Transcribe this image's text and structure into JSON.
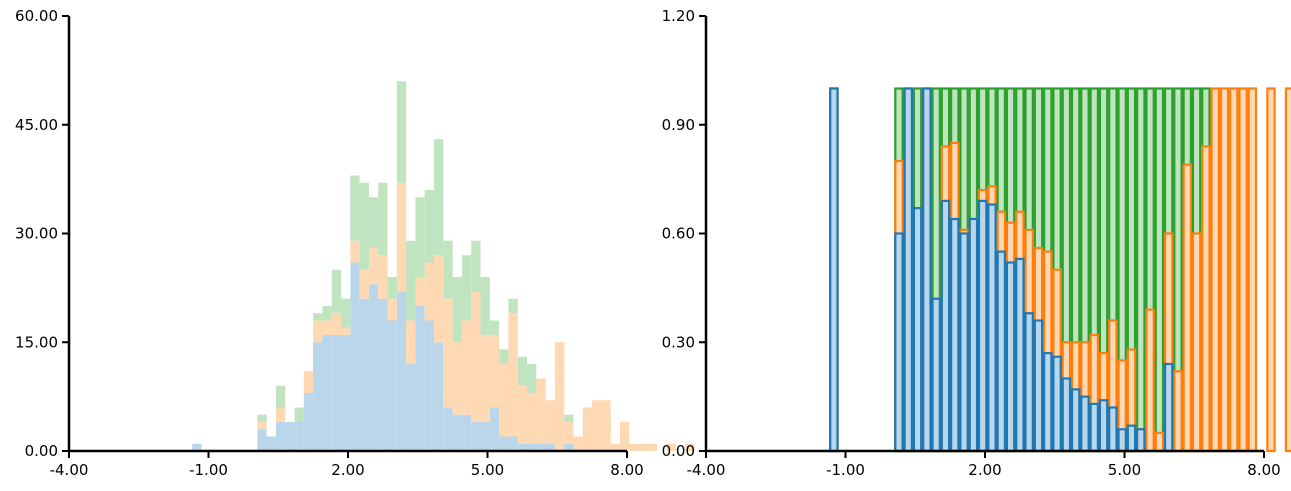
{
  "chart_data": [
    {
      "type": "bar",
      "histtype": "stacked-filled",
      "x_ticks": [
        "-4.00",
        "-1.00",
        "2.00",
        "5.00",
        "8.00"
      ],
      "y_ticks": [
        "0.00",
        "15.00",
        "30.00",
        "45.00",
        "60.00"
      ],
      "xlim": [
        -4,
        8
      ],
      "ylim": [
        0,
        60
      ],
      "bin_start": -1.35,
      "bin_width": 0.2,
      "series": [
        {
          "color": "#bad6ea",
          "values": [
            1,
            0,
            0,
            0,
            0,
            0,
            0,
            3,
            2,
            4,
            4,
            4,
            8,
            15,
            16,
            16,
            16,
            26,
            21,
            23,
            21,
            18,
            22,
            12,
            20,
            18,
            15,
            6,
            5,
            5,
            4,
            4,
            6,
            2,
            2,
            1,
            1,
            1,
            1,
            0,
            1
          ]
        },
        {
          "color": "#ffd8b4",
          "values": [
            0,
            0,
            0,
            0,
            0,
            0,
            0,
            1,
            0,
            2,
            0,
            0,
            3,
            3,
            2,
            3,
            1,
            3,
            4,
            5,
            6,
            3,
            15,
            6,
            4,
            8,
            12,
            15,
            10,
            13,
            18,
            12,
            10,
            10,
            17,
            8,
            7,
            9,
            6,
            15,
            3,
            2,
            6,
            7,
            7,
            1,
            4,
            1,
            1,
            1,
            0,
            1,
            0,
            1
          ]
        },
        {
          "color": "#c0e4c0",
          "values": [
            0,
            0,
            0,
            0,
            0,
            0,
            0,
            1,
            0,
            3,
            0,
            2,
            0,
            1,
            2,
            6,
            4,
            9,
            12,
            7,
            10,
            3,
            14,
            11,
            11,
            10,
            16,
            8,
            9,
            9,
            7,
            8,
            2,
            2,
            2,
            4,
            4,
            0,
            0,
            0,
            1,
            0,
            0,
            0,
            0
          ]
        }
      ]
    },
    {
      "type": "bar",
      "histtype": "stacked-step-normalized",
      "x_ticks": [
        "-4.00",
        "-1.00",
        "2.00",
        "5.00",
        "8.00"
      ],
      "y_ticks": [
        "0.00",
        "0.30",
        "0.60",
        "0.90",
        "1.20"
      ],
      "xlim": [
        -4,
        8
      ],
      "ylim": [
        0,
        1.2
      ],
      "bin_start": -1.35,
      "bin_width": 0.2,
      "series": [
        {
          "color": "#1f77b4",
          "fill": "#bad6ea",
          "cumulative": [
            1,
            0,
            0,
            0,
            0,
            0,
            0,
            0.6,
            1,
            0.67,
            1,
            0.42,
            0.69,
            0.64,
            0.6,
            0.64,
            0.69,
            0.68,
            0.55,
            0.52,
            0.53,
            0.38,
            0.36,
            0.27,
            0.26,
            0.2,
            0.17,
            0.15,
            0.13,
            0.14,
            0.12,
            0.06,
            0.07,
            0.06,
            0,
            0,
            0.24,
            0,
            0,
            0,
            0
          ]
        },
        {
          "color": "#ff7f0e",
          "fill": "#ffd8b4",
          "cumulative": [
            1,
            0,
            0,
            0,
            0,
            0,
            0,
            0.8,
            1,
            0.67,
            1,
            0.42,
            0.84,
            0.85,
            0.61,
            0.64,
            0.72,
            0.73,
            0.66,
            0.63,
            0.66,
            0.61,
            0.56,
            0.55,
            0.5,
            0.3,
            0.3,
            0.3,
            0.32,
            0.27,
            0.36,
            0.25,
            0.28,
            0.06,
            0.39,
            0.05,
            0.6,
            0.22,
            0.79,
            0.6,
            0.84,
            1,
            1,
            1,
            1,
            1,
            0,
            1,
            0,
            1,
            0,
            1,
            0,
            1
          ]
        },
        {
          "color": "#2ca02c",
          "fill": "#c0e4c0",
          "cumulative": [
            1,
            0,
            0,
            0,
            0,
            0,
            0,
            1,
            1,
            1,
            1,
            1,
            1,
            1,
            1,
            1,
            1,
            1,
            1,
            1,
            1,
            1,
            1,
            1,
            1,
            1,
            1,
            1,
            1,
            1,
            1,
            1,
            1,
            1,
            1,
            1,
            1,
            1,
            1,
            1,
            1
          ]
        }
      ]
    }
  ]
}
